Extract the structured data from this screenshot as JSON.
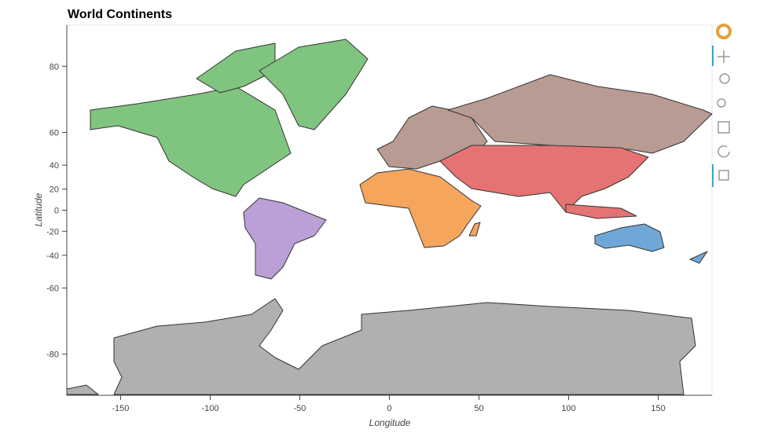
{
  "chart_data": {
    "type": "map",
    "title": "World Continents",
    "x_label": "Longitude",
    "y_label": "Latitude",
    "xlim": [
      -180,
      180
    ],
    "ylim": [
      -85,
      85
    ],
    "y_scale": "mercator",
    "xticks": [
      -150,
      -100,
      -50,
      0,
      50,
      100,
      150
    ],
    "yticks": [
      -80,
      -60,
      -40,
      -20,
      0,
      20,
      40,
      60,
      80
    ]
  }
}
